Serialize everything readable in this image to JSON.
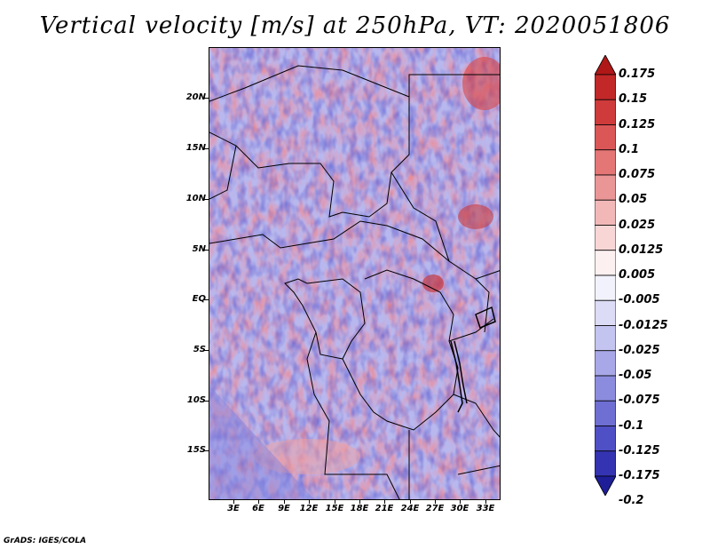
{
  "title": "Vertical velocity [m/s] at 250hPa, VT: 2020051806",
  "credit": "GrADS: IGES/COLA",
  "latitude_labels": [
    "20N",
    "15N",
    "10N",
    "5N",
    "EQ",
    "5S",
    "10S",
    "15S"
  ],
  "longitude_labels": [
    "3E",
    "6E",
    "9E",
    "12E",
    "15E",
    "18E",
    "21E",
    "24E",
    "27E",
    "30E",
    "33E"
  ],
  "colorbar": {
    "labels": [
      "0.175",
      "0.15",
      "0.125",
      "0.1",
      "0.075",
      "0.05",
      "0.025",
      "0.0125",
      "0.005",
      "-0.005",
      "-0.0125",
      "-0.025",
      "-0.05",
      "-0.075",
      "-0.1",
      "-0.125",
      "-0.175",
      "-0.2"
    ],
    "colors": [
      "#b01818",
      "#c22828",
      "#cf3b3b",
      "#db5656",
      "#e47676",
      "#eb9696",
      "#f2b8b8",
      "#f8d6d6",
      "#fdf0f0",
      "#f2f2fc",
      "#dcdcf6",
      "#c4c4f0",
      "#a8a8e8",
      "#8c8cde",
      "#6e6ed3",
      "#5050c6",
      "#3434b2",
      "#1e1e98"
    ]
  }
}
